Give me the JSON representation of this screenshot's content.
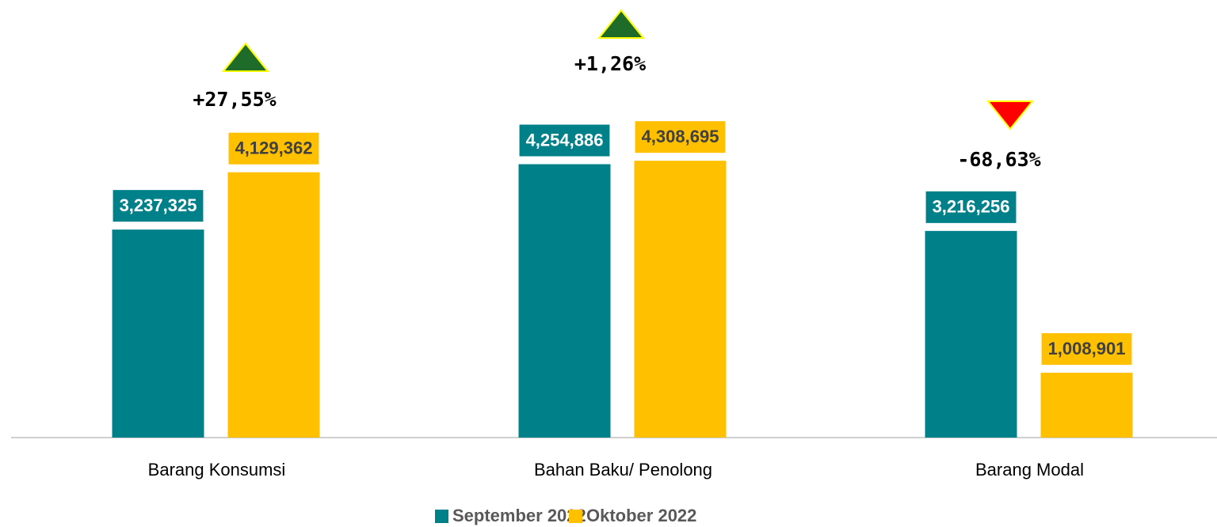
{
  "chart_data": {
    "type": "bar",
    "categories": [
      "Barang Konsumsi",
      "Bahan Baku/ Penolong",
      "Barang Modal"
    ],
    "series": [
      {
        "name": "September 2022",
        "color": "#00818a",
        "values": [
          3237325,
          4254886,
          3216256
        ],
        "value_labels": [
          "3,237,325",
          "4,254,886",
          "3,216,256"
        ]
      },
      {
        "name": "Oktober 2022",
        "color": "#ffc000",
        "values": [
          4129362,
          4308695,
          1008901
        ],
        "value_labels": [
          "4,129,362",
          "4,308,695",
          "1,008,901"
        ]
      }
    ],
    "annotations": [
      {
        "text": "+27,55%",
        "marker": "up",
        "color": "#1e6b2a"
      },
      {
        "text": "+1,26%",
        "marker": "up",
        "color": "#1e6b2a"
      },
      {
        "text": "-68,63%",
        "marker": "down",
        "color": "#ff0000"
      }
    ],
    "ylim": [
      0,
      5000000
    ],
    "legend": "bottom"
  }
}
